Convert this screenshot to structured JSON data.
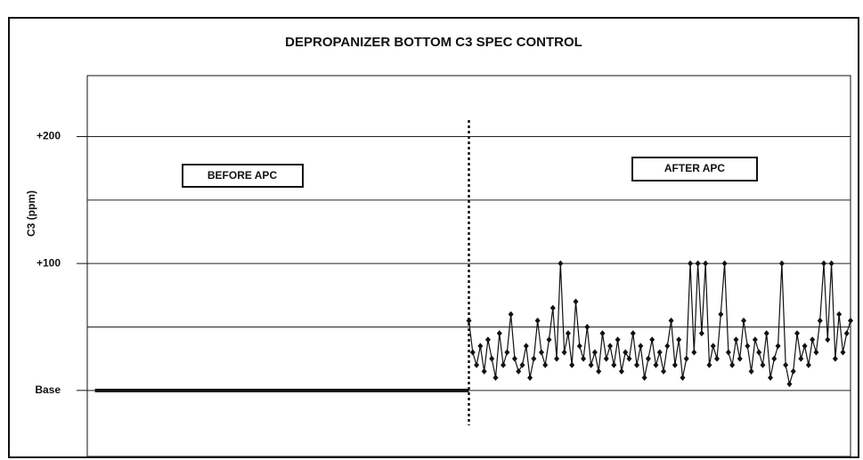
{
  "chart_data": {
    "type": "line",
    "title": "DEPROPANIZER BOTTOM C3 SPEC CONTROL",
    "y_label": "C3 (ppm)",
    "annotations": [
      "BEFORE APC",
      "AFTER APC"
    ],
    "apc_start_x": 100,
    "xlim": [
      0,
      200
    ],
    "ylim": [
      -52,
      248
    ],
    "yticks": [
      {
        "value": 0,
        "label": "Base"
      },
      {
        "value": 100,
        "label": "+100"
      },
      {
        "value": 200,
        "label": "+200"
      }
    ],
    "grid_lines": [
      0,
      50,
      100,
      150,
      200
    ],
    "series": [
      {
        "name": "Before APC",
        "color": "#111111",
        "x": [
          2,
          100
        ],
        "values": [
          0,
          0
        ]
      },
      {
        "name": "After APC",
        "color": "#111111",
        "x": [
          100,
          101,
          102,
          103,
          104,
          105,
          106,
          107,
          108,
          109,
          110,
          111,
          112,
          113,
          114,
          115,
          116,
          117,
          118,
          119,
          120,
          121,
          122,
          123,
          124,
          125,
          126,
          127,
          128,
          129,
          130,
          131,
          132,
          133,
          134,
          135,
          136,
          137,
          138,
          139,
          140,
          141,
          142,
          143,
          144,
          145,
          146,
          147,
          148,
          149,
          150,
          151,
          152,
          153,
          154,
          155,
          156,
          157,
          158,
          159,
          160,
          161,
          162,
          163,
          164,
          165,
          166,
          167,
          168,
          169,
          170,
          171,
          172,
          173,
          174,
          175,
          176,
          177,
          178,
          179,
          180,
          181,
          182,
          183,
          184,
          185,
          186,
          187,
          188,
          189,
          190,
          191,
          192,
          193,
          194,
          195,
          196,
          197,
          198,
          199,
          200
        ],
        "values": [
          55,
          30,
          20,
          35,
          15,
          40,
          25,
          10,
          45,
          20,
          30,
          60,
          25,
          15,
          20,
          35,
          10,
          25,
          55,
          30,
          20,
          40,
          65,
          25,
          100,
          30,
          45,
          20,
          70,
          35,
          25,
          50,
          20,
          30,
          15,
          45,
          25,
          35,
          20,
          40,
          15,
          30,
          25,
          45,
          20,
          35,
          10,
          25,
          40,
          20,
          30,
          15,
          35,
          55,
          20,
          40,
          10,
          25,
          100,
          30,
          100,
          45,
          100,
          20,
          35,
          25,
          60,
          100,
          30,
          20,
          40,
          25,
          55,
          35,
          15,
          40,
          30,
          20,
          45,
          10,
          25,
          35,
          100,
          20,
          5,
          15,
          45,
          25,
          35,
          20,
          40,
          30,
          55,
          100,
          40,
          100,
          25,
          60,
          30,
          45,
          55
        ]
      }
    ]
  }
}
